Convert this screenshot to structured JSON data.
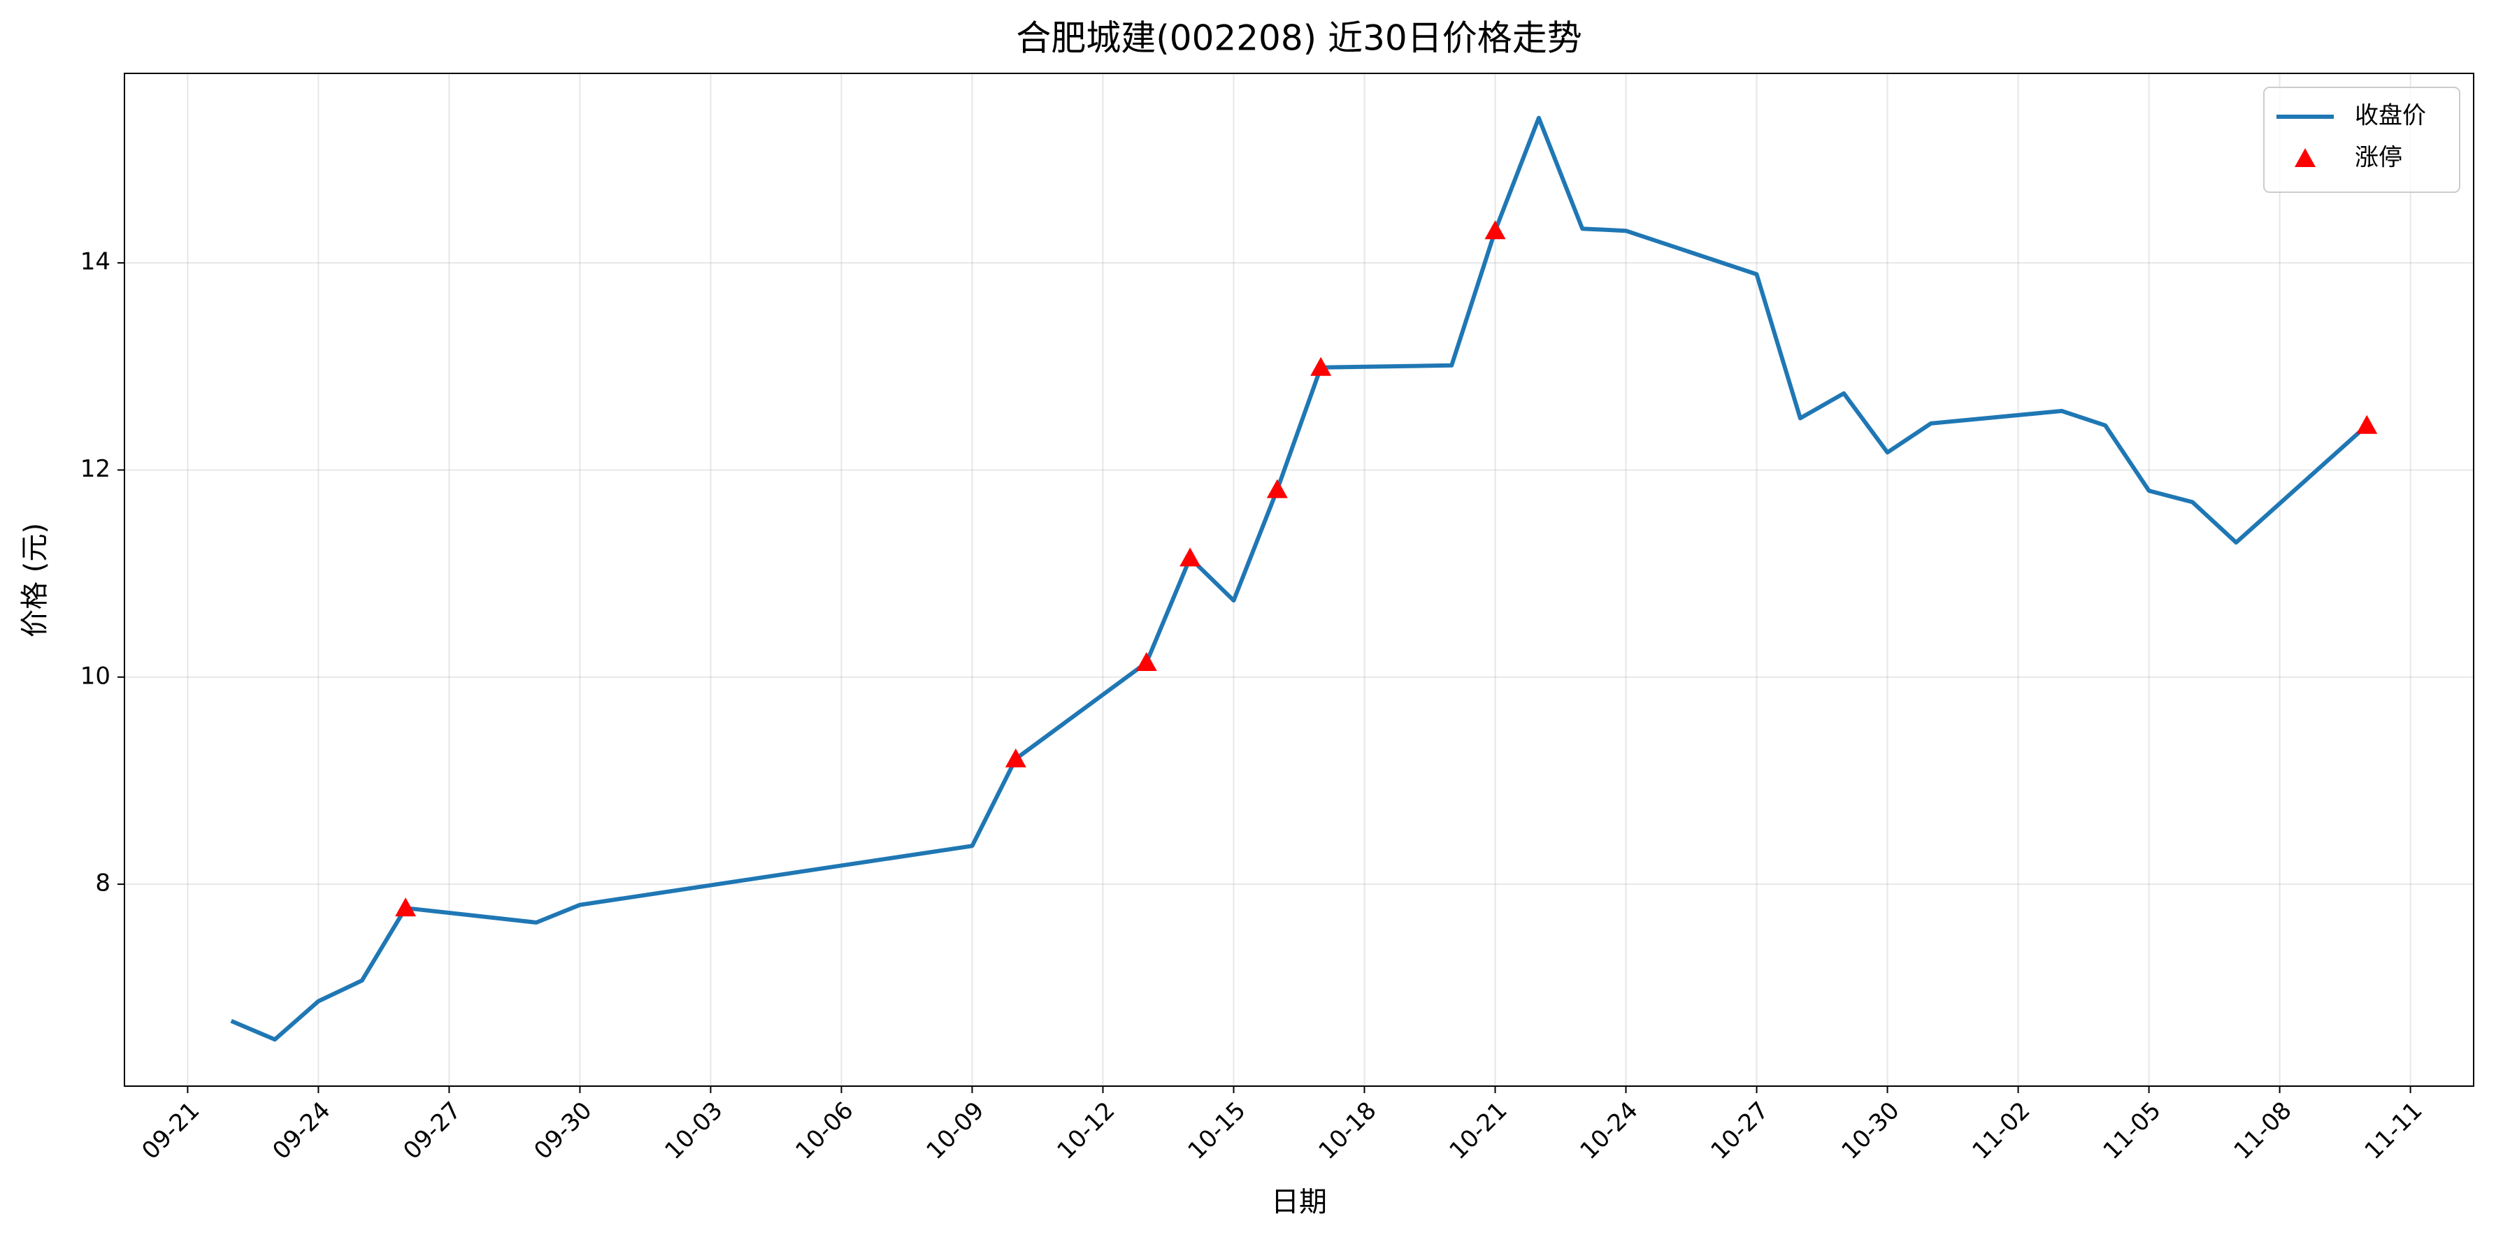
{
  "chart_data": {
    "type": "line",
    "title": "合肥城建(002208) 近30日价格走势",
    "xlabel": "日期",
    "ylabel": "价格 (元)",
    "x": [
      "09-22",
      "09-23",
      "09-24",
      "09-25",
      "09-26",
      "09-29",
      "09-30",
      "10-09",
      "10-10",
      "10-13",
      "10-14",
      "10-15",
      "10-16",
      "10-17",
      "10-20",
      "10-21",
      "10-22",
      "10-23",
      "10-24",
      "10-27",
      "10-28",
      "10-29",
      "10-30",
      "10-31",
      "11-03",
      "11-04",
      "11-05",
      "11-06",
      "11-07",
      "11-10"
    ],
    "series": [
      {
        "name": "收盘价",
        "color": "#1f77b4",
        "values": [
          6.68,
          6.5,
          6.87,
          7.07,
          7.77,
          7.63,
          7.8,
          8.37,
          9.21,
          10.14,
          11.15,
          10.74,
          11.81,
          12.99,
          13.01,
          14.31,
          15.4,
          14.33,
          14.31,
          13.89,
          12.5,
          12.74,
          12.17,
          12.45,
          12.57,
          12.43,
          11.8,
          11.69,
          11.3,
          12.43
        ]
      },
      {
        "name": "涨停",
        "type": "scatter",
        "color": "#ff0000",
        "x": [
          "09-26",
          "10-10",
          "10-13",
          "10-14",
          "10-16",
          "10-17",
          "10-21",
          "11-10"
        ],
        "values": [
          7.77,
          9.21,
          10.14,
          11.15,
          11.81,
          12.99,
          14.31,
          12.43
        ]
      }
    ],
    "xticks": [
      "09-21",
      "09-24",
      "09-27",
      "09-30",
      "10-03",
      "10-06",
      "10-09",
      "10-12",
      "10-15",
      "10-18",
      "10-21",
      "10-24",
      "10-27",
      "10-30",
      "11-02",
      "11-05",
      "11-08",
      "11-11"
    ],
    "ylim": [
      6.05,
      15.83
    ],
    "yticks": [
      8,
      10,
      12,
      14
    ],
    "grid": true,
    "legend": "upper right"
  }
}
